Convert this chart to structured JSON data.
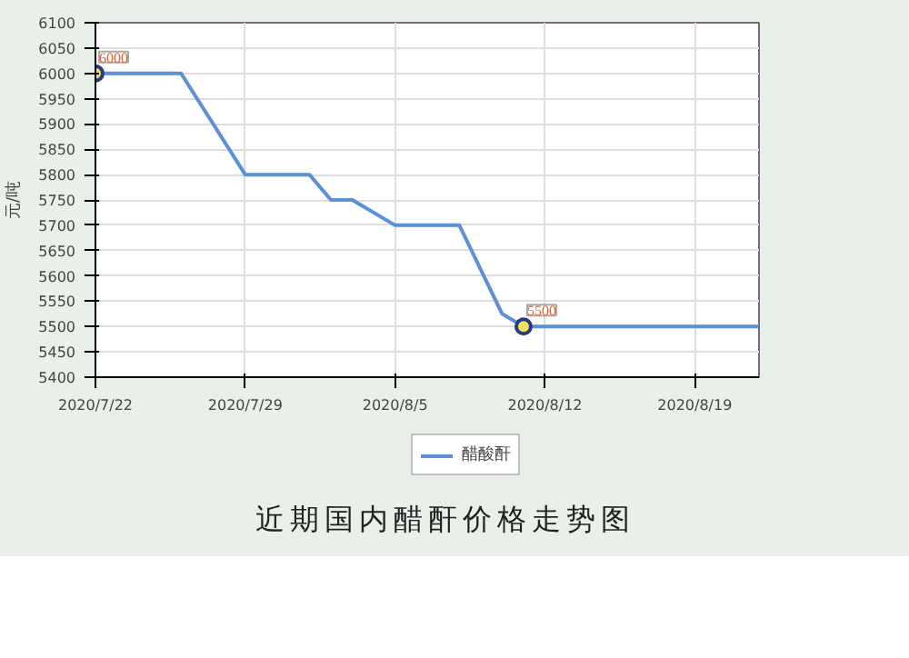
{
  "chart_data": {
    "type": "line",
    "ylabel": "元/吨",
    "annotations": [
      "近期国内醋酐价格走势图"
    ],
    "x": [
      "2020-07-22",
      "2020-07-26",
      "2020-07-29",
      "2020-08-01",
      "2020-08-02",
      "2020-08-03",
      "2020-08-05",
      "2020-08-08",
      "2020-08-10",
      "2020-08-11",
      "2020-08-22"
    ],
    "series": [
      {
        "name": "醋酸酐",
        "color": "#5b8fd6",
        "values": [
          6000,
          6000,
          5800,
          5800,
          5750,
          5750,
          5700,
          5700,
          5525,
          5500,
          5500
        ],
        "value_labels": [
          "6000",
          null,
          null,
          null,
          null,
          null,
          null,
          null,
          null,
          "5500",
          null
        ]
      }
    ],
    "xlim": [
      "2020-07-22",
      "2020-08-22"
    ],
    "xticks": [
      {
        "value": "2020-07-22",
        "label": "2020/7/22"
      },
      {
        "value": "2020-07-29",
        "label": "2020/7/29"
      },
      {
        "value": "2020-08-05",
        "label": "2020/8/5"
      },
      {
        "value": "2020-08-12",
        "label": "2020/8/12"
      },
      {
        "value": "2020-08-19",
        "label": "2020/8/19"
      }
    ],
    "ylim": [
      5400,
      6100
    ],
    "yticks": [
      5400,
      5450,
      5500,
      5550,
      5600,
      5650,
      5700,
      5750,
      5800,
      5850,
      5900,
      5950,
      6000,
      6050,
      6100
    ],
    "grid": true,
    "legend": "bottom",
    "line_style": "solid"
  }
}
